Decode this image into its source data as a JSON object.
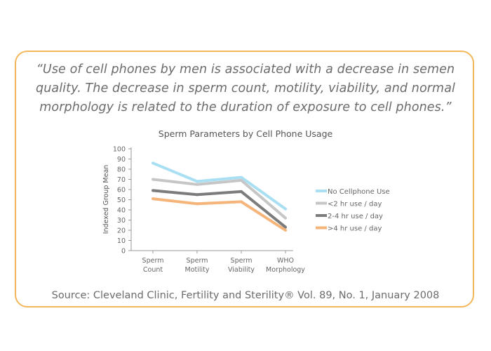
{
  "quote": "“Use of cell phones by men is associated with a decrease in semen quality.  The decrease in sperm count, motility, viability, and normal morphology is related to the duration of exposure to cell phones.”",
  "source": "Source: Cleveland Clinic,  Fertility and Sterility® Vol. 89, No. 1, January 2008",
  "colors": {
    "border": "#f3b65a"
  },
  "chart_data": {
    "type": "line",
    "title": "Sperm Parameters by Cell Phone Usage",
    "xlabel": "",
    "ylabel": "Indexed Group Mean",
    "ylim": [
      0,
      100
    ],
    "yticks": [
      0,
      10,
      20,
      30,
      40,
      50,
      60,
      70,
      80,
      90,
      100
    ],
    "grid": false,
    "legend_position": "right",
    "categories": [
      [
        "Sperm",
        "Count"
      ],
      [
        "Sperm",
        "Motility"
      ],
      [
        "Sperm",
        "Viability"
      ],
      [
        "WHO",
        "Morphology"
      ]
    ],
    "series": [
      {
        "name": "No Cellphone Use",
        "color": "#a9dff3",
        "values": [
          86,
          68,
          72,
          41
        ]
      },
      {
        "name": "<2 hr use / day",
        "color": "#c6c6c6",
        "values": [
          70,
          65,
          69,
          32
        ]
      },
      {
        "name": "2-4 hr use / day",
        "color": "#7c7c7c",
        "values": [
          59,
          55,
          58,
          23
        ]
      },
      {
        "name": ">4 hr use / day",
        "color": "#f5b57a",
        "values": [
          51,
          46,
          48,
          20
        ]
      }
    ]
  }
}
